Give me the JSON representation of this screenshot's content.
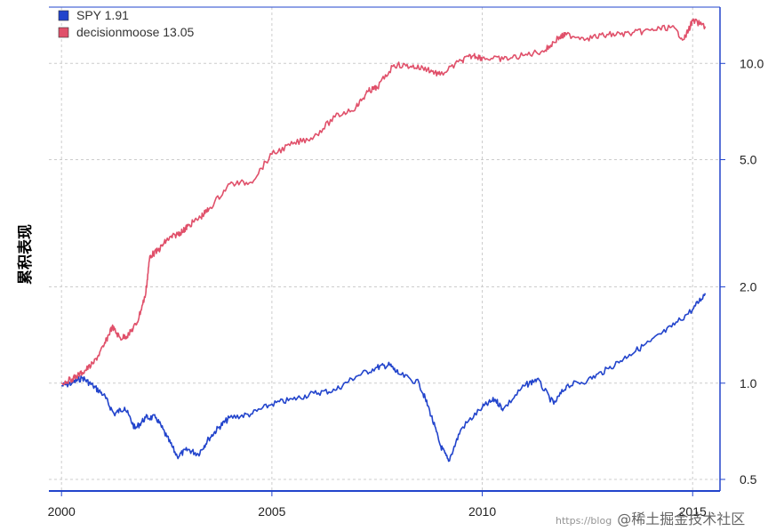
{
  "chart_data": {
    "type": "line",
    "ylabel": "累积表现",
    "y_scale": "log",
    "ylim": [
      0.46,
      15.0
    ],
    "xlim": [
      1999.7,
      2015.65
    ],
    "x_ticks": [
      2000,
      2005,
      2010,
      2015
    ],
    "x_tick_labels": [
      "2000",
      "2005",
      "2010",
      "2015"
    ],
    "y_ticks": [
      0.5,
      1.0,
      2.0,
      5.0,
      10.0
    ],
    "y_tick_labels": [
      "0.5",
      "1.0",
      "2.0",
      "5.0",
      "10.0"
    ],
    "grid": true,
    "legend_position": "top-left",
    "series": [
      {
        "name": "SPY",
        "legend_label": "SPY  1.91",
        "color": "#2244cc",
        "x": [
          2000.0,
          2000.25,
          2000.5,
          2000.75,
          2001.0,
          2001.25,
          2001.5,
          2001.75,
          2002.0,
          2002.25,
          2002.5,
          2002.75,
          2003.0,
          2003.25,
          2003.5,
          2003.75,
          2004.0,
          2004.5,
          2005.0,
          2005.5,
          2006.0,
          2006.5,
          2007.0,
          2007.5,
          2007.8,
          2008.0,
          2008.5,
          2008.75,
          2009.0,
          2009.2,
          2009.5,
          2010.0,
          2010.3,
          2010.5,
          2011.0,
          2011.3,
          2011.7,
          2012.0,
          2012.5,
          2013.0,
          2013.5,
          2014.0,
          2014.5,
          2015.0,
          2015.3
        ],
        "values": [
          0.98,
          1.0,
          1.04,
          0.98,
          0.92,
          0.8,
          0.84,
          0.72,
          0.78,
          0.78,
          0.68,
          0.59,
          0.62,
          0.6,
          0.67,
          0.73,
          0.78,
          0.8,
          0.86,
          0.89,
          0.93,
          0.95,
          1.05,
          1.12,
          1.14,
          1.07,
          1.0,
          0.82,
          0.64,
          0.57,
          0.72,
          0.84,
          0.89,
          0.83,
          0.98,
          1.03,
          0.86,
          0.98,
          1.02,
          1.11,
          1.23,
          1.35,
          1.5,
          1.7,
          1.91
        ]
      },
      {
        "name": "decisionmoose",
        "legend_label": "decisionmoose  13.05",
        "color": "#e0506a",
        "x": [
          2000.0,
          2000.25,
          2000.5,
          2000.75,
          2001.0,
          2001.2,
          2001.4,
          2001.6,
          2001.8,
          2002.0,
          2002.1,
          2002.3,
          2002.5,
          2002.7,
          2002.9,
          2003.0,
          2003.3,
          2003.5,
          2004.0,
          2004.5,
          2005.0,
          2005.5,
          2006.0,
          2006.5,
          2007.0,
          2007.3,
          2007.5,
          2007.9,
          2008.3,
          2008.7,
          2009.0,
          2009.5,
          2009.8,
          2010.0,
          2010.5,
          2011.0,
          2011.5,
          2011.8,
          2012.0,
          2012.5,
          2013.0,
          2013.5,
          2014.0,
          2014.5,
          2014.8,
          2015.0,
          2015.3
        ],
        "values": [
          1.0,
          1.03,
          1.08,
          1.15,
          1.3,
          1.5,
          1.38,
          1.42,
          1.55,
          1.9,
          2.5,
          2.6,
          2.8,
          2.9,
          3.0,
          3.1,
          3.3,
          3.5,
          4.2,
          4.25,
          5.2,
          5.6,
          5.9,
          6.8,
          7.3,
          8.2,
          8.4,
          9.9,
          9.8,
          9.6,
          9.2,
          10.2,
          10.6,
          10.4,
          10.3,
          10.6,
          11.0,
          12.0,
          12.3,
          12.0,
          12.3,
          12.4,
          12.7,
          13.0,
          11.9,
          13.6,
          13.05
        ]
      }
    ]
  },
  "watermark": {
    "url_text": "https://blog",
    "text": "@稀土掘金技术社区"
  }
}
